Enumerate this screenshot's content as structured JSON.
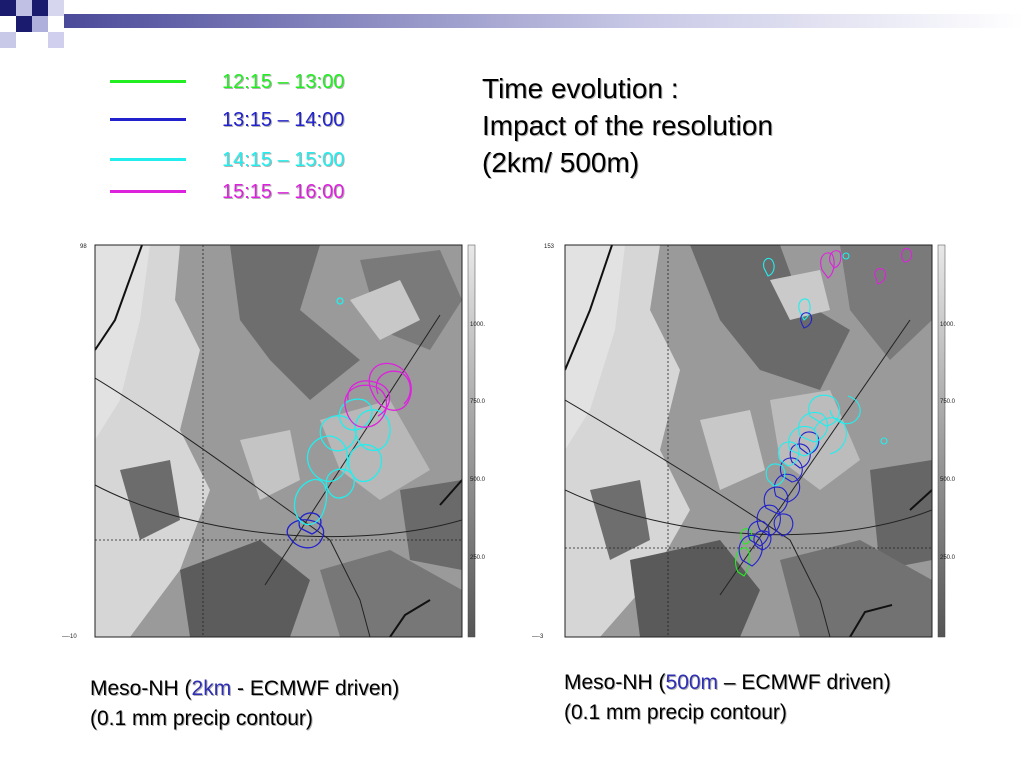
{
  "legend": [
    {
      "label": "12:15 – 13:00",
      "color": "#22ee22"
    },
    {
      "label": "13:15 – 14:00",
      "color": "#2222cc"
    },
    {
      "label": "14:15 – 15:00",
      "color": "#22eeee"
    },
    {
      "label": "15:15 – 16:00",
      "color": "#dd22dd"
    }
  ],
  "title": {
    "line1": "Time evolution :",
    "line2": "Impact of the resolution",
    "line3": "(2km/ 500m)"
  },
  "left_panel": {
    "colorbar_ticks": [
      "1000.",
      "750.0",
      "500.0",
      "250.0"
    ],
    "corner_top": "98",
    "corner_bottom": "—-10"
  },
  "right_panel": {
    "colorbar_ticks": [
      "1000.",
      "750.0",
      "500.0",
      "250.0"
    ],
    "corner_top": "153",
    "corner_bottom": "—-3"
  },
  "captions": {
    "left": {
      "prefix": "Meso-NH (",
      "highlight": "2km",
      "suffix": " - ECMWF driven)",
      "line2": "(0.1 mm  precip contour)"
    },
    "right": {
      "prefix": "Meso-NH (",
      "highlight": "500m",
      "suffix": " – ECMWF driven)",
      "line2": "(0.1 mm  precip contour)"
    }
  },
  "colors": {
    "corner_navy": "#1a1a6e",
    "corner_lilac": "#b3b3e0"
  }
}
